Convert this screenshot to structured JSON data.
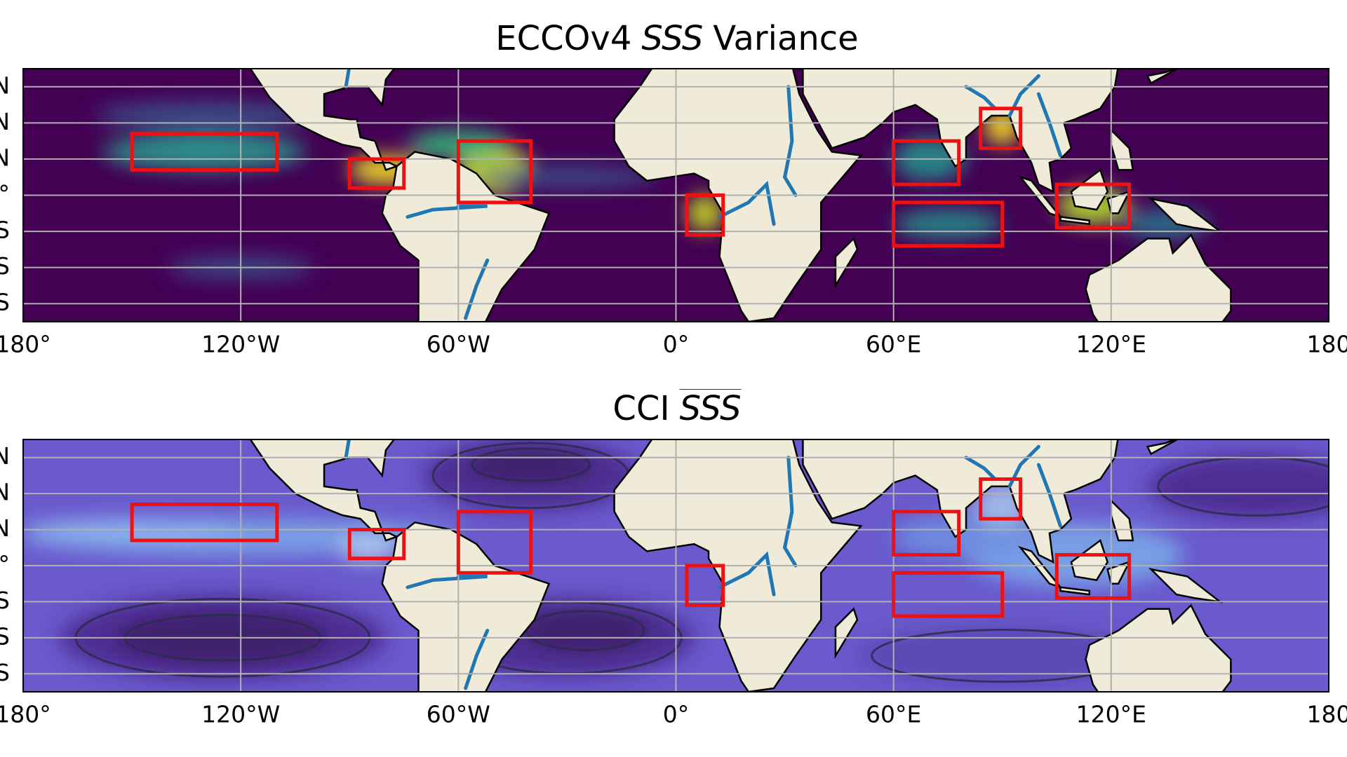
{
  "panels": [
    {
      "title": [
        "ECCOv4",
        "SSS",
        "Variance"
      ],
      "xlim": [
        -180,
        180
      ],
      "xticks": [
        {
          "value": -180,
          "label": "180°"
        },
        {
          "value": -120,
          "label": "120°W"
        },
        {
          "value": -60,
          "label": "60°W"
        },
        {
          "value": 0,
          "label": "0°"
        },
        {
          "value": 60,
          "label": "60°E"
        },
        {
          "value": 120,
          "label": "120°E"
        },
        {
          "value": 180,
          "label": "180"
        }
      ],
      "ylim": [
        -35,
        35
      ],
      "yticks": [
        {
          "value": 30,
          "label": "N"
        },
        {
          "value": 20,
          "label": "N"
        },
        {
          "value": 10,
          "label": "N"
        },
        {
          "value": 0,
          "label": "°"
        },
        {
          "value": -10,
          "label": "S"
        },
        {
          "value": -20,
          "label": "S"
        },
        {
          "value": -30,
          "label": "S"
        }
      ]
    },
    {
      "title": [
        "CCI",
        "SSS"
      ],
      "xlim": [
        -180,
        180
      ],
      "xticks": [
        {
          "value": -180,
          "label": "180°"
        },
        {
          "value": -120,
          "label": "120°W"
        },
        {
          "value": -60,
          "label": "60°W"
        },
        {
          "value": 0,
          "label": "0°"
        },
        {
          "value": 60,
          "label": "60°E"
        },
        {
          "value": 120,
          "label": "120°E"
        },
        {
          "value": 180,
          "label": "180"
        }
      ],
      "ylim": [
        -35,
        35
      ],
      "yticks": [
        {
          "value": 30,
          "label": "N"
        },
        {
          "value": 20,
          "label": "N"
        },
        {
          "value": 10,
          "label": "N"
        },
        {
          "value": 0,
          "label": "°"
        },
        {
          "value": -10,
          "label": "S"
        },
        {
          "value": -20,
          "label": "S"
        },
        {
          "value": -30,
          "label": "S"
        }
      ]
    }
  ]
}
